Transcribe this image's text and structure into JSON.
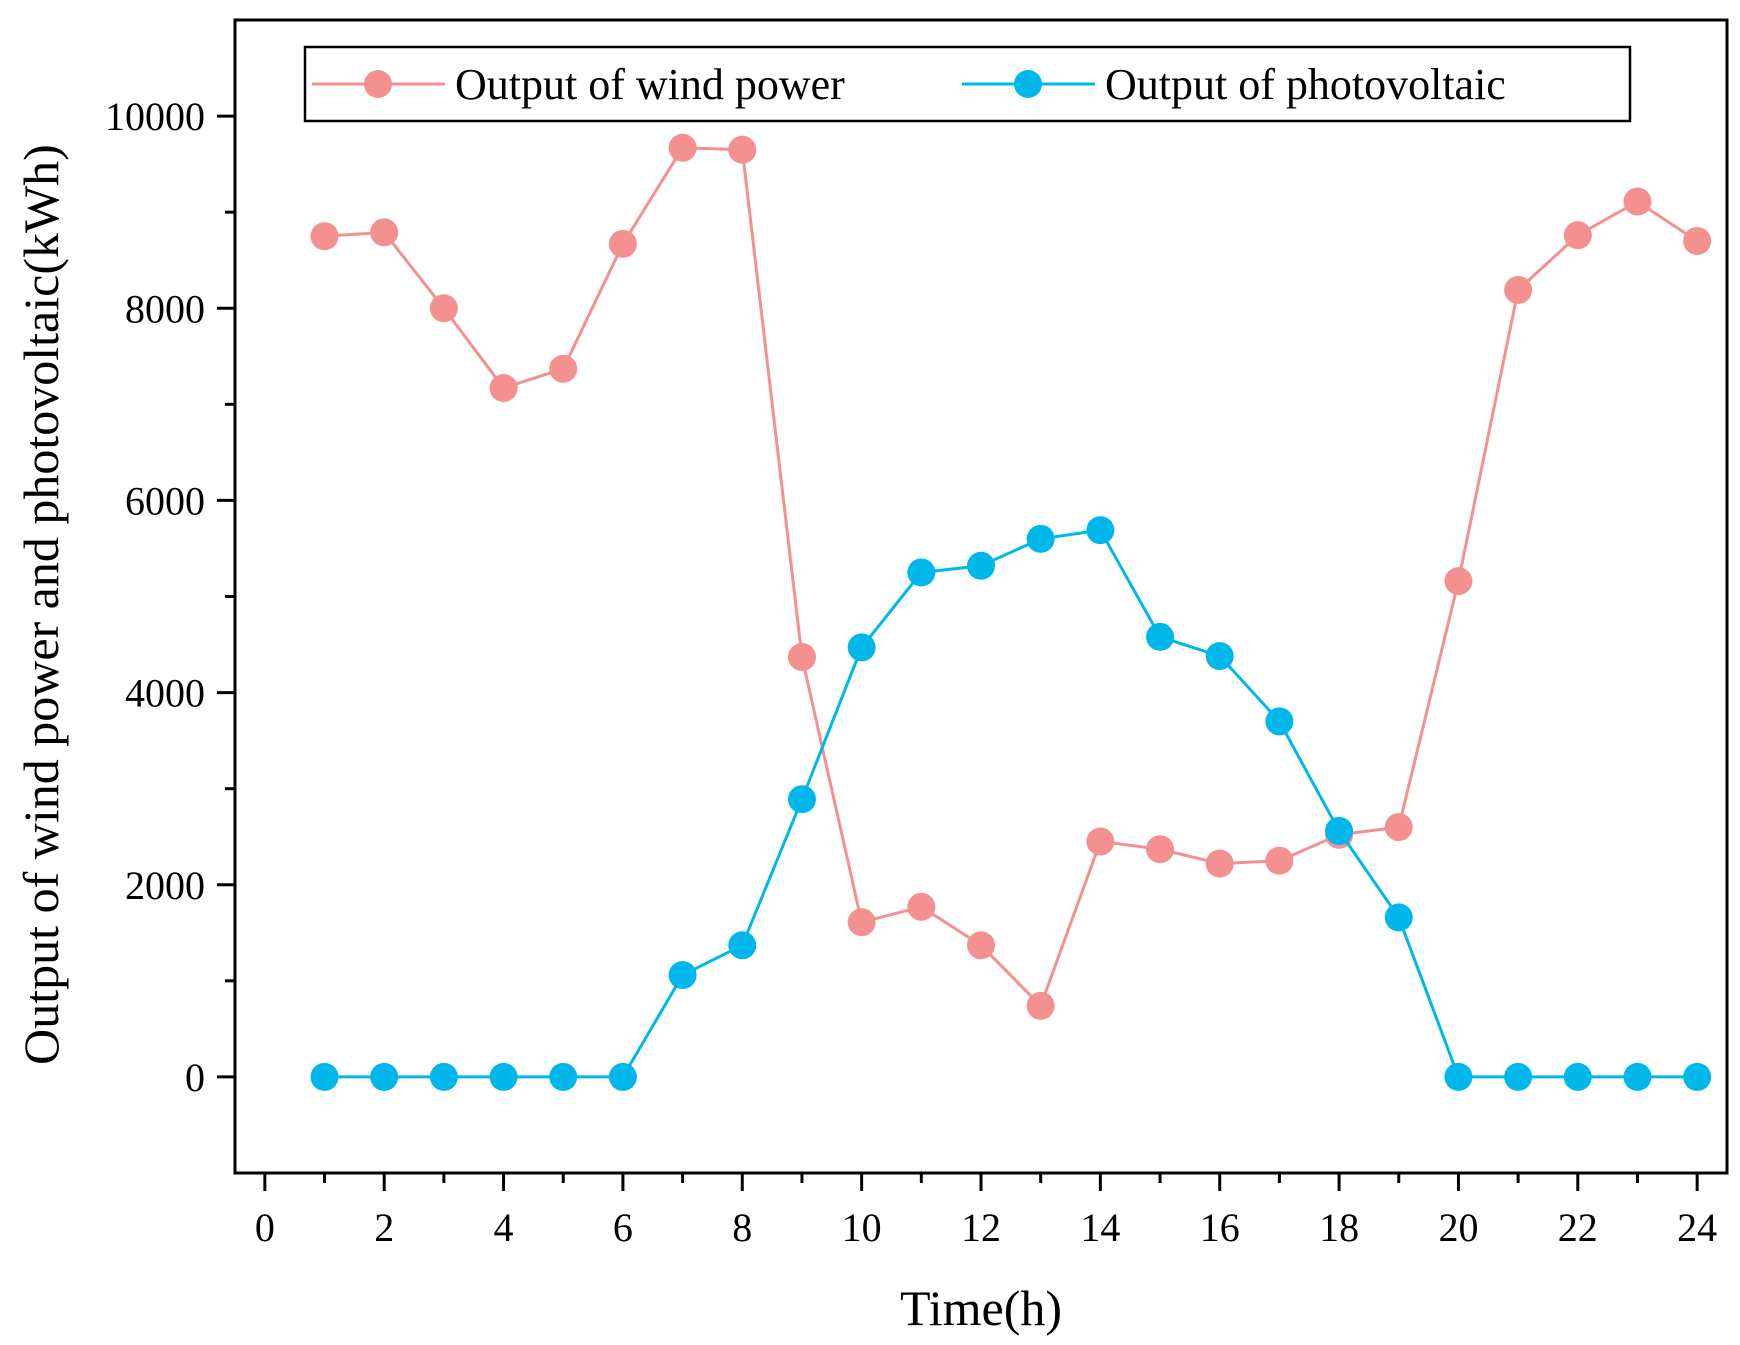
{
  "chart_data": {
    "type": "line",
    "xlabel": "Time(h)",
    "ylabel": "Output of wind power and photovoltaic(kWh)",
    "xlim": [
      -0.5,
      24.5
    ],
    "ylim": [
      -1000,
      11000
    ],
    "xticks": [
      0,
      2,
      4,
      6,
      8,
      10,
      12,
      14,
      16,
      18,
      20,
      22,
      24
    ],
    "xminor": [
      1,
      3,
      5,
      7,
      9,
      11,
      13,
      15,
      17,
      19,
      21,
      23
    ],
    "yticks": [
      0,
      2000,
      4000,
      6000,
      8000,
      10000
    ],
    "yminor": [
      1000,
      3000,
      5000,
      7000,
      9000
    ],
    "grid": false,
    "legend_position": "top",
    "x": [
      1,
      2,
      3,
      4,
      5,
      6,
      7,
      8,
      9,
      10,
      11,
      12,
      13,
      14,
      15,
      16,
      17,
      18,
      19,
      20,
      21,
      22,
      23,
      24
    ],
    "series": [
      {
        "name": "Output of wind power",
        "color": "#F4908F",
        "marker": "circle",
        "values": [
          8750,
          8790,
          8000,
          7170,
          7370,
          8670,
          9670,
          9650,
          4370,
          1610,
          1770,
          1370,
          740,
          2450,
          2370,
          2220,
          2250,
          2520,
          2600,
          5160,
          8190,
          8760,
          9110,
          8700
        ]
      },
      {
        "name": "Output of photovoltaic",
        "color": "#00B7EB",
        "marker": "circle",
        "values": [
          0,
          0,
          0,
          0,
          0,
          0,
          1060,
          1370,
          2890,
          4470,
          5250,
          5320,
          5600,
          5690,
          4580,
          4380,
          3700,
          2560,
          1660,
          0,
          0,
          0,
          0,
          0
        ]
      }
    ]
  }
}
